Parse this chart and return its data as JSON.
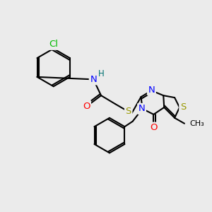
{
  "bg_color": "#ebebeb",
  "atom_colors": {
    "C": "#000000",
    "N": "#0000ff",
    "O": "#ff0000",
    "S": "#999900",
    "Cl": "#00bb00",
    "H": "#007070"
  },
  "bond_color": "#000000",
  "bond_width": 1.5,
  "font_size": 9.5
}
